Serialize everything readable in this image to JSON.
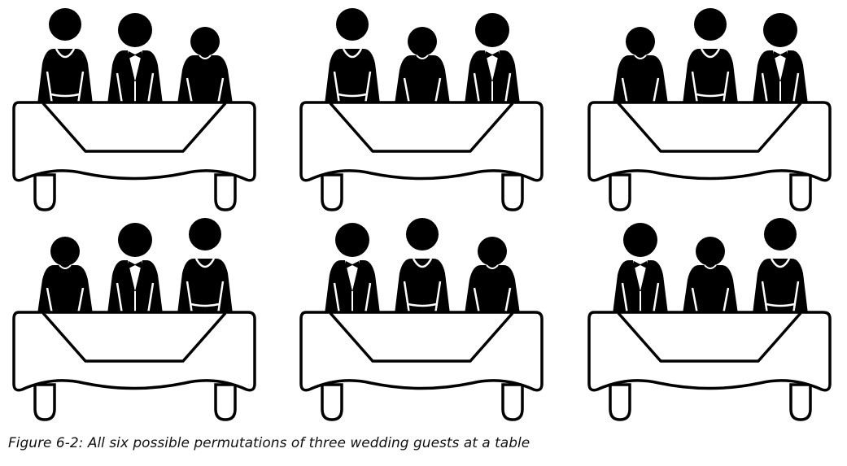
{
  "caption": "Figure 6-2: All six possible permutations of three wedding guests at a table",
  "guest_types": {
    "W": "woman-in-dress",
    "M": "man-in-tuxedo",
    "P": "plain-guest"
  },
  "permutations": [
    [
      "W",
      "M",
      "P"
    ],
    [
      "W",
      "P",
      "M"
    ],
    [
      "P",
      "W",
      "M"
    ],
    [
      "P",
      "M",
      "W"
    ],
    [
      "M",
      "W",
      "P"
    ],
    [
      "M",
      "P",
      "W"
    ]
  ],
  "colors": {
    "ink": "#000000",
    "paper": "#ffffff"
  }
}
